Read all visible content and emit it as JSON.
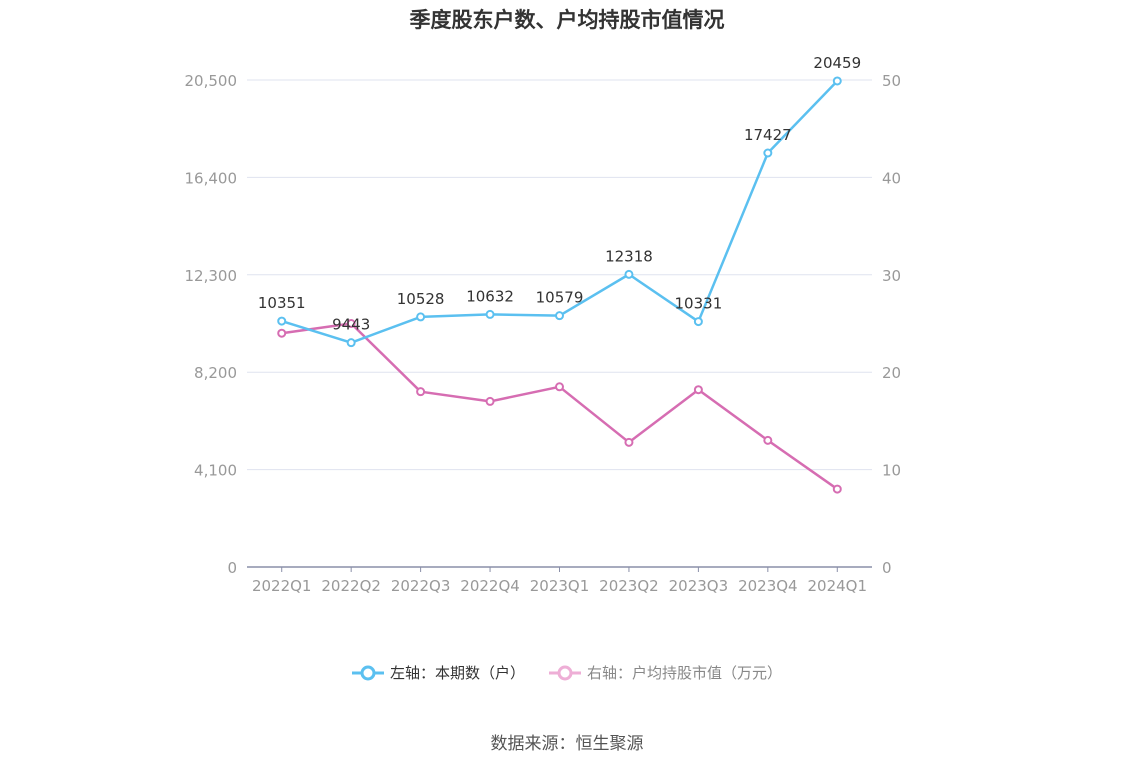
{
  "chart_data": {
    "type": "line",
    "title": "季度股东户数、户均持股市值情况",
    "categories": [
      "2022Q1",
      "2022Q2",
      "2022Q3",
      "2022Q4",
      "2023Q1",
      "2023Q2",
      "2023Q3",
      "2023Q4",
      "2024Q1"
    ],
    "series": [
      {
        "name": "左轴：本期数（户）",
        "axis": "left",
        "color": "#5bc0f0",
        "values": [
          10351,
          9443,
          10528,
          10632,
          10579,
          12318,
          10331,
          17427,
          20459
        ],
        "labels": [
          "10351",
          "9443",
          "10528",
          "10632",
          "10579",
          "12318",
          "10331",
          "17427",
          "20459"
        ]
      },
      {
        "name": "右轴：户均持股市值（万元）",
        "axis": "right",
        "color": "#d66db2",
        "values": [
          24.0,
          25.0,
          18.0,
          17.0,
          18.5,
          12.8,
          18.2,
          13.0,
          8.0
        ]
      }
    ],
    "y_left": {
      "ticks": [
        0,
        4100,
        8200,
        12300,
        16400,
        20500
      ],
      "tick_labels": [
        "0",
        "4,100",
        "8,200",
        "12,300",
        "16,400",
        "20,500"
      ],
      "ylim": [
        0,
        20500
      ]
    },
    "y_right": {
      "ticks": [
        0,
        10,
        20,
        30,
        40,
        50
      ],
      "tick_labels": [
        "0",
        "10",
        "20",
        "30",
        "40",
        "50"
      ],
      "ylim": [
        0,
        50
      ]
    },
    "grid": true,
    "legend_position": "bottom"
  },
  "legend": {
    "left_label": "左轴：本期数（户）",
    "right_label": "右轴：户均持股市值（万元）"
  },
  "source": "数据来源：恒生聚源"
}
